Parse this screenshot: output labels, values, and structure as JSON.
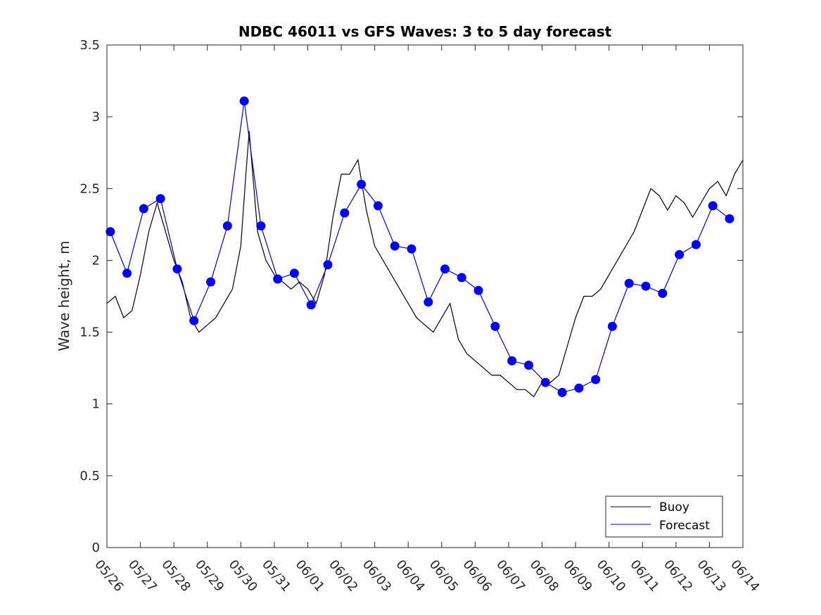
{
  "chart_data": {
    "type": "line",
    "title": "NDBC 46011 vs GFS Waves: 3 to 5 day forecast",
    "xlabel": "",
    "ylabel": "Wave height, m",
    "ylim": [
      0,
      3.5
    ],
    "yticks": [
      "0",
      "0.5",
      "1",
      "1.5",
      "2",
      "2.5",
      "3",
      "3.5"
    ],
    "xticks": [
      "05/26",
      "05/27",
      "05/28",
      "05/29",
      "05/30",
      "05/31",
      "06/01",
      "06/02",
      "06/03",
      "06/04",
      "06/05",
      "06/06",
      "06/07",
      "06/08",
      "06/09",
      "06/10",
      "06/11",
      "06/12",
      "06/13",
      "06/14"
    ],
    "grid": false,
    "legend": {
      "placement": "bottom-right",
      "entries": [
        "Buoy",
        "Forecast"
      ]
    },
    "colors": {
      "buoy": "#000000",
      "forecast": "#0000cc",
      "forecast_markers": "#0000ff"
    },
    "series": [
      {
        "name": "Buoy",
        "x_day": [
          0,
          0.25,
          0.5,
          0.75,
          1,
          1.25,
          1.5,
          1.75,
          2,
          2.25,
          2.5,
          2.75,
          3,
          3.25,
          3.5,
          3.75,
          4,
          4.15,
          4.25,
          4.5,
          4.75,
          5,
          5.25,
          5.5,
          5.75,
          6,
          6.25,
          6.5,
          6.75,
          7,
          7.25,
          7.5,
          7.75,
          8,
          8.25,
          8.5,
          8.75,
          9,
          9.25,
          9.5,
          9.75,
          10,
          10.25,
          10.5,
          10.75,
          11,
          11.25,
          11.5,
          11.75,
          12,
          12.25,
          12.5,
          12.75,
          13,
          13.25,
          13.5,
          13.75,
          14,
          14.25,
          14.5,
          14.75,
          15,
          15.25,
          15.5,
          15.75,
          16,
          16.25,
          16.5,
          16.75,
          17,
          17.25,
          17.5,
          17.75,
          18,
          18.25,
          18.5,
          18.75,
          19
        ],
        "values": [
          1.7,
          1.75,
          1.6,
          1.65,
          1.9,
          2.2,
          2.4,
          2.2,
          2.0,
          1.85,
          1.6,
          1.5,
          1.55,
          1.6,
          1.7,
          1.8,
          2.1,
          2.6,
          2.9,
          2.2,
          2.0,
          1.9,
          1.85,
          1.8,
          1.85,
          1.8,
          1.7,
          1.9,
          2.3,
          2.6,
          2.6,
          2.7,
          2.35,
          2.1,
          2.0,
          1.9,
          1.8,
          1.7,
          1.6,
          1.55,
          1.5,
          1.6,
          1.7,
          1.45,
          1.35,
          1.3,
          1.25,
          1.2,
          1.2,
          1.15,
          1.1,
          1.1,
          1.05,
          1.15,
          1.15,
          1.2,
          1.4,
          1.6,
          1.75,
          1.75,
          1.8,
          1.9,
          2.0,
          2.1,
          2.2,
          2.35,
          2.5,
          2.45,
          2.35,
          2.45,
          2.4,
          2.3,
          2.4,
          2.5,
          2.55,
          2.45,
          2.6,
          2.7
        ]
      },
      {
        "name": "Forecast",
        "x_day": [
          0.1,
          0.6,
          1.1,
          1.6,
          2.1,
          2.6,
          3.1,
          3.6,
          4.1,
          4.6,
          5.1,
          5.6,
          6.1,
          6.6,
          7.1,
          7.6,
          8.1,
          8.6,
          9.1,
          9.6,
          10.1,
          10.6,
          11.1,
          11.6,
          12.1,
          12.6,
          13.1,
          13.6,
          14.1,
          14.6,
          15.1,
          15.6,
          16.1,
          16.6,
          17.1,
          17.6,
          18.1,
          18.6
        ],
        "values": [
          2.2,
          1.91,
          2.36,
          2.43,
          1.94,
          1.58,
          1.85,
          2.24,
          3.11,
          2.24,
          1.87,
          1.91,
          1.69,
          1.97,
          2.33,
          2.53,
          2.38,
          2.1,
          2.08,
          1.71,
          1.94,
          1.88,
          1.79,
          1.54,
          1.3,
          1.27,
          1.15,
          1.08,
          1.11,
          1.17,
          1.54,
          1.84,
          1.82,
          1.77,
          2.04,
          2.11,
          2.38,
          2.29
        ]
      }
    ]
  }
}
